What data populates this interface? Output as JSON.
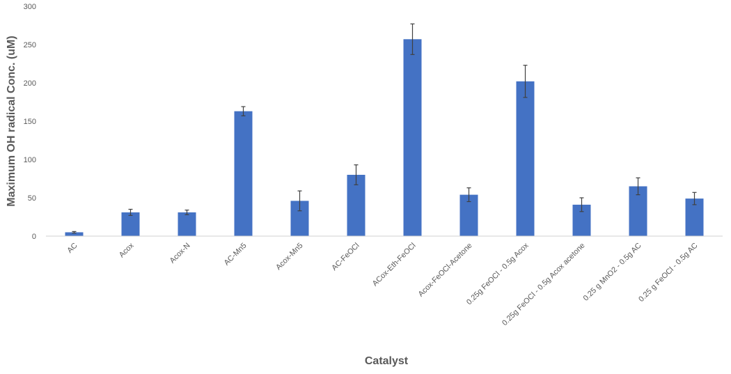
{
  "chart_data": {
    "type": "bar",
    "title": "",
    "xlabel": "Catalyst",
    "ylabel": "Maximum OH radical Conc. (uM)",
    "ylim": [
      0,
      300
    ],
    "yticks": [
      0,
      50,
      100,
      150,
      200,
      250,
      300
    ],
    "grid": false,
    "legend": "none",
    "bar_color": "#4472C4",
    "categories": [
      "AC",
      "Acox",
      "Acox-N",
      "AC-Mn5",
      "Acox-Mn5",
      "AC-FeOCl",
      "ACox-Eth-FeOCl",
      "Acox-FeOCl-Acetone",
      "0.25g FeOCl - 0.5g Acox",
      "0.25g FeOCl - 0.5g Acox acetone",
      "0.25 g MnO2 - 0.5g AC",
      "0.25 g FeOCl - 0.5g AC"
    ],
    "values": [
      5,
      31,
      31,
      163,
      46,
      80,
      257,
      54,
      202,
      41,
      65,
      49
    ],
    "errors": [
      1,
      4,
      3,
      6,
      13,
      13,
      20,
      9,
      21,
      9,
      11,
      8
    ]
  }
}
